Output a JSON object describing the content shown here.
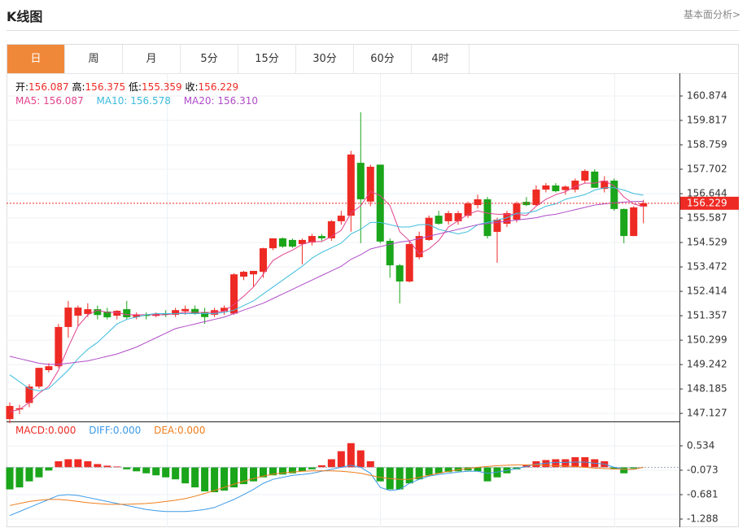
{
  "header": {
    "title": "K线图",
    "link": "基本面分析>"
  },
  "tabs": [
    "日",
    "周",
    "月",
    "5分",
    "15分",
    "30分",
    "60分",
    "4时"
  ],
  "active_tab": 0,
  "chart_data": [
    {
      "type": "candlestick",
      "ohlc_labels": [
        "开:",
        "高:",
        "低:",
        "收:"
      ],
      "up_color": "#ee2a24",
      "down_color": "#1aa51a",
      "grid": true,
      "last_price_line": true,
      "ylim": [
        146.78,
        161.86
      ],
      "yticks": [
        147.127,
        148.185,
        149.242,
        150.299,
        151.357,
        152.414,
        153.472,
        154.529,
        155.587,
        156.644,
        157.702,
        158.759,
        159.817,
        160.874
      ],
      "candles": [
        [
          146.88,
          147.6,
          146.7,
          147.45
        ],
        [
          147.3,
          147.5,
          147.1,
          147.35
        ],
        [
          147.58,
          148.4,
          147.4,
          148.29
        ],
        [
          148.29,
          149.1,
          148.2,
          149.1
        ],
        [
          149.0,
          149.3,
          148.9,
          149.17
        ],
        [
          149.17,
          151.0,
          149.1,
          150.87
        ],
        [
          150.87,
          152.0,
          150.4,
          151.71
        ],
        [
          151.36,
          151.8,
          150.9,
          151.71
        ],
        [
          151.43,
          151.9,
          151.3,
          151.64
        ],
        [
          151.64,
          151.8,
          151.2,
          151.39
        ],
        [
          151.54,
          151.7,
          151.2,
          151.29
        ],
        [
          151.36,
          151.6,
          151.2,
          151.57
        ],
        [
          151.64,
          152.0,
          151.2,
          151.29
        ],
        [
          151.3,
          151.5,
          151.2,
          151.4
        ],
        [
          151.4,
          151.5,
          151.2,
          151.35
        ],
        [
          151.35,
          151.5,
          151.3,
          151.45
        ],
        [
          151.45,
          151.6,
          151.3,
          151.4
        ],
        [
          151.4,
          151.7,
          151.3,
          151.6
        ],
        [
          151.55,
          151.8,
          151.4,
          151.65
        ],
        [
          151.65,
          151.8,
          151.4,
          151.45
        ],
        [
          151.5,
          151.7,
          151.0,
          151.3
        ],
        [
          151.4,
          151.7,
          151.3,
          151.6
        ],
        [
          151.55,
          151.8,
          151.4,
          151.7
        ],
        [
          151.45,
          153.2,
          151.4,
          153.15
        ],
        [
          153.05,
          153.3,
          152.9,
          153.26
        ],
        [
          153.15,
          153.3,
          152.63,
          153.3
        ],
        [
          153.26,
          154.3,
          153.0,
          154.28
        ],
        [
          154.28,
          154.7,
          154.2,
          154.71
        ],
        [
          154.71,
          154.75,
          154.3,
          154.35
        ],
        [
          154.64,
          154.7,
          154.3,
          154.35
        ],
        [
          154.46,
          154.7,
          153.58,
          154.64
        ],
        [
          154.53,
          154.9,
          154.4,
          154.81
        ],
        [
          154.81,
          154.9,
          154.6,
          154.71
        ],
        [
          154.71,
          155.5,
          154.6,
          155.45
        ],
        [
          155.45,
          155.9,
          155.3,
          155.69
        ],
        [
          155.69,
          158.5,
          155.0,
          158.34
        ],
        [
          157.98,
          160.17,
          154.5,
          156.4
        ],
        [
          156.3,
          157.9,
          156.1,
          157.81
        ],
        [
          157.9,
          157.9,
          154.5,
          154.57
        ],
        [
          154.6,
          154.7,
          153.0,
          153.54
        ],
        [
          153.54,
          153.6,
          151.89,
          152.84
        ],
        [
          152.84,
          154.6,
          152.8,
          154.46
        ],
        [
          153.89,
          155.0,
          153.8,
          154.81
        ],
        [
          154.64,
          155.7,
          154.6,
          155.6
        ],
        [
          155.69,
          155.9,
          155.3,
          155.34
        ],
        [
          155.45,
          155.9,
          155.3,
          155.8
        ],
        [
          155.45,
          155.9,
          155.3,
          155.8
        ],
        [
          155.69,
          156.3,
          155.6,
          156.22
        ],
        [
          156.15,
          156.6,
          156.0,
          156.4
        ],
        [
          156.4,
          156.5,
          154.7,
          154.81
        ],
        [
          154.99,
          155.6,
          153.65,
          155.52
        ],
        [
          155.34,
          155.9,
          155.2,
          155.8
        ],
        [
          155.52,
          156.3,
          155.4,
          156.22
        ],
        [
          156.29,
          156.5,
          156.1,
          156.15
        ],
        [
          156.15,
          157.0,
          156.1,
          156.82
        ],
        [
          156.82,
          157.1,
          156.7,
          157.0
        ],
        [
          157.0,
          157.1,
          156.7,
          156.75
        ],
        [
          156.8,
          157.0,
          156.6,
          156.95
        ],
        [
          156.82,
          157.3,
          156.7,
          157.21
        ],
        [
          157.21,
          157.7,
          157.1,
          157.63
        ],
        [
          157.6,
          157.7,
          156.9,
          156.9
        ],
        [
          156.85,
          157.4,
          156.7,
          157.2
        ],
        [
          157.21,
          157.3,
          155.9,
          155.98
        ],
        [
          155.98,
          156.0,
          154.5,
          154.81
        ],
        [
          154.81,
          156.1,
          154.8,
          156.05
        ],
        [
          156.087,
          156.375,
          155.359,
          156.229
        ]
      ],
      "series": [
        {
          "name": "MA5:",
          "color": "#e2448e",
          "legend_value": "156.087",
          "values": [
            147.2,
            147.3,
            147.6,
            148.0,
            148.3,
            149.0,
            150.0,
            150.9,
            151.4,
            151.6,
            151.5,
            151.5,
            151.4,
            151.4,
            151.4,
            151.4,
            151.4,
            151.45,
            151.5,
            151.5,
            151.5,
            151.5,
            151.55,
            151.85,
            152.2,
            152.6,
            153.15,
            153.75,
            154.0,
            154.2,
            154.45,
            154.57,
            154.57,
            154.79,
            155.06,
            155.8,
            156.12,
            156.74,
            156.56,
            156.13,
            155.0,
            154.6,
            154.04,
            154.25,
            154.61,
            155.2,
            155.47,
            155.75,
            155.9,
            155.8,
            155.75,
            155.75,
            155.75,
            155.7,
            156.1,
            156.4,
            156.6,
            156.73,
            156.95,
            157.1,
            157.1,
            157.2,
            156.98,
            156.5,
            156.2,
            156.087
          ]
        },
        {
          "name": "MA10:",
          "color": "#3cbcdc",
          "legend_value": "156.578",
          "values": [
            148.8,
            148.5,
            148.2,
            148.1,
            148.2,
            148.6,
            149.0,
            149.5,
            149.9,
            150.2,
            150.6,
            151.0,
            151.2,
            151.3,
            151.4,
            151.45,
            151.45,
            151.45,
            151.45,
            151.45,
            151.45,
            151.45,
            151.5,
            151.6,
            151.8,
            152.0,
            152.3,
            152.6,
            152.9,
            153.2,
            153.5,
            153.85,
            154.1,
            154.3,
            154.5,
            154.9,
            155.1,
            155.4,
            155.4,
            155.3,
            155.2,
            155.2,
            155.3,
            155.3,
            155.1,
            155.0,
            154.9,
            155.0,
            155.3,
            155.4,
            155.5,
            155.6,
            155.8,
            155.8,
            155.9,
            156.1,
            156.2,
            156.4,
            156.5,
            156.6,
            156.8,
            156.9,
            156.9,
            156.8,
            156.65,
            156.578
          ]
        },
        {
          "name": "MA20:",
          "color": "#b04cc8",
          "legend_value": "156.310",
          "values": [
            149.6,
            149.5,
            149.4,
            149.3,
            149.25,
            149.25,
            149.3,
            149.35,
            149.4,
            149.5,
            149.6,
            149.7,
            149.85,
            150.0,
            150.2,
            150.4,
            150.6,
            150.8,
            150.9,
            151.0,
            151.1,
            151.2,
            151.3,
            151.45,
            151.6,
            151.75,
            151.9,
            152.1,
            152.3,
            152.5,
            152.7,
            152.9,
            153.1,
            153.3,
            153.5,
            153.8,
            154.0,
            154.25,
            154.35,
            154.45,
            154.55,
            154.6,
            154.7,
            154.8,
            154.9,
            155.0,
            155.1,
            155.2,
            155.3,
            155.35,
            155.4,
            155.45,
            155.5,
            155.55,
            155.6,
            155.7,
            155.75,
            155.85,
            155.95,
            156.05,
            156.15,
            156.2,
            156.25,
            156.28,
            156.3,
            156.31
          ]
        }
      ]
    },
    {
      "type": "macd",
      "ylim": [
        -1.49,
        1.1
      ],
      "yticks": [
        0.534,
        -0.073,
        -0.681,
        -1.288
      ],
      "bars": {
        "name": "MACD:",
        "legend_value": "0.000",
        "color": "#ee2a24",
        "up_color": "#ee2a24",
        "down_color": "#1aa51a",
        "values": [
          -0.55,
          -0.5,
          -0.35,
          -0.25,
          -0.08,
          0.15,
          0.2,
          0.2,
          0.15,
          0.08,
          0.04,
          0.02,
          -0.05,
          -0.1,
          -0.15,
          -0.2,
          -0.25,
          -0.3,
          -0.4,
          -0.5,
          -0.6,
          -0.62,
          -0.58,
          -0.5,
          -0.42,
          -0.35,
          -0.25,
          -0.2,
          -0.18,
          -0.15,
          -0.1,
          -0.05,
          0.05,
          0.2,
          0.4,
          0.6,
          0.42,
          0.15,
          -0.35,
          -0.55,
          -0.55,
          -0.4,
          -0.3,
          -0.2,
          -0.15,
          -0.12,
          -0.1,
          -0.08,
          -0.1,
          -0.35,
          -0.25,
          -0.15,
          -0.05,
          0.05,
          0.15,
          0.18,
          0.2,
          0.2,
          0.25,
          0.25,
          0.2,
          0.15,
          -0.05,
          -0.15,
          -0.03,
          0
        ]
      },
      "series": [
        {
          "name": "DIFF:",
          "color": "#3c9ae8",
          "legend_value": "0.000",
          "values": [
            -1.2,
            -1.1,
            -1.0,
            -0.9,
            -0.8,
            -0.7,
            -0.68,
            -0.7,
            -0.75,
            -0.8,
            -0.85,
            -0.9,
            -0.95,
            -1.0,
            -1.05,
            -1.08,
            -1.1,
            -1.1,
            -1.1,
            -1.08,
            -1.05,
            -1.0,
            -0.9,
            -0.8,
            -0.68,
            -0.55,
            -0.4,
            -0.3,
            -0.25,
            -0.2,
            -0.18,
            -0.15,
            -0.1,
            -0.05,
            0,
            0.05,
            0,
            -0.15,
            -0.5,
            -0.58,
            -0.55,
            -0.4,
            -0.3,
            -0.22,
            -0.18,
            -0.15,
            -0.12,
            -0.1,
            -0.1,
            -0.15,
            -0.12,
            -0.08,
            -0.03,
            0.02,
            0.08,
            0.1,
            0.12,
            0.12,
            0.13,
            0.13,
            0.1,
            0.08,
            0,
            -0.05,
            -0.05,
            0
          ]
        },
        {
          "name": "DEA:",
          "color": "#f07d1c",
          "legend_value": "0.000",
          "values": [
            -0.95,
            -0.9,
            -0.85,
            -0.82,
            -0.8,
            -0.8,
            -0.82,
            -0.85,
            -0.88,
            -0.9,
            -0.92,
            -0.92,
            -0.92,
            -0.91,
            -0.9,
            -0.88,
            -0.85,
            -0.82,
            -0.78,
            -0.72,
            -0.65,
            -0.58,
            -0.5,
            -0.42,
            -0.35,
            -0.28,
            -0.22,
            -0.17,
            -0.14,
            -0.12,
            -0.1,
            -0.09,
            -0.09,
            -0.09,
            -0.1,
            -0.12,
            -0.15,
            -0.2,
            -0.25,
            -0.28,
            -0.3,
            -0.3,
            -0.25,
            -0.2,
            -0.15,
            -0.1,
            -0.06,
            -0.03,
            0,
            0.02,
            0.04,
            0.05,
            0.06,
            0.06,
            0.06,
            0.05,
            0.04,
            0.03,
            0.02,
            0,
            -0.02,
            -0.03,
            -0.04,
            -0.05,
            -0.05,
            0
          ]
        }
      ]
    }
  ]
}
